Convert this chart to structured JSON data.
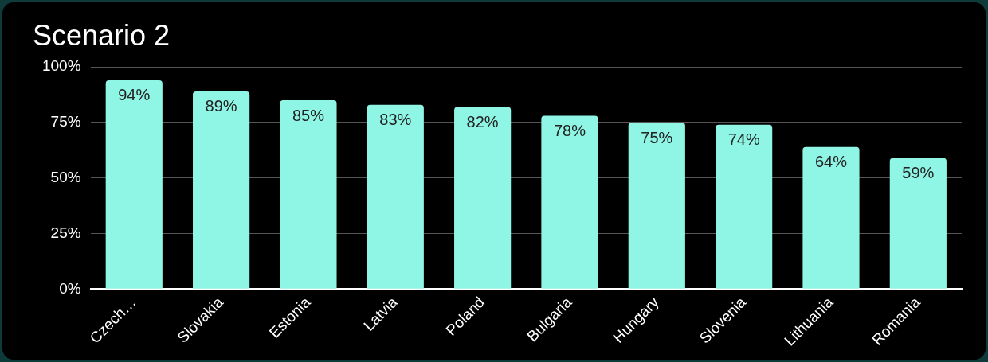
{
  "chart_data": {
    "type": "bar",
    "title": "Scenario 2",
    "categories": [
      "Czech…",
      "Slovakia",
      "Estonia",
      "Latvia",
      "Poland",
      "Bulgaria",
      "Hungary",
      "Slovenia",
      "Lithuania",
      "Romania"
    ],
    "values": [
      94,
      89,
      85,
      83,
      82,
      78,
      75,
      74,
      64,
      59
    ],
    "value_labels": [
      "94%",
      "89%",
      "85%",
      "83%",
      "82%",
      "78%",
      "75%",
      "74%",
      "64%",
      "59%"
    ],
    "color": "#8ff5e4",
    "ylim": [
      0,
      100
    ],
    "yticks": [
      {
        "value": 0,
        "label": "0%"
      },
      {
        "value": 25,
        "label": "25%"
      },
      {
        "value": 50,
        "label": "50%"
      },
      {
        "value": 75,
        "label": "75%"
      },
      {
        "value": 100,
        "label": "100%"
      }
    ],
    "grid": "y",
    "legend": false
  }
}
